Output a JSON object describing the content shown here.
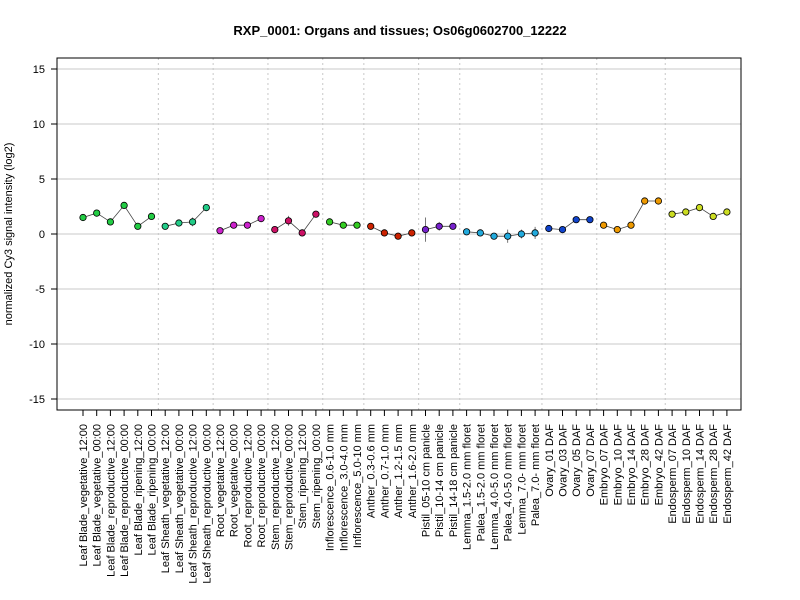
{
  "chart_data": {
    "type": "scatter",
    "title": "RXP_0001: Organs and tissues; Os06g0602700_12222",
    "ylabel": "normalized Cy3 signal intensity (log2)",
    "xlabel": "",
    "ylim": [
      -16,
      16
    ],
    "yticks": [
      -15,
      -10,
      -5,
      0,
      5,
      10,
      15
    ],
    "grid": true,
    "categories": [
      "Leaf Blade_vegetative_12:00",
      "Leaf Blade_vegetative_00:00",
      "Leaf Blade_reproductive_12:00",
      "Leaf Blade_reproductive_00:00",
      "Leaf Blade_ripening_12:00",
      "Leaf Blade_ripening_00:00",
      "Leaf Sheath_vegetative_12:00",
      "Leaf Sheath_vegetative_00:00",
      "Leaf Sheath_reproductive_12:00",
      "Leaf Sheath_reproductive_00:00",
      "Root_vegetative_12:00",
      "Root_vegetative_00:00",
      "Root_reproductive_12:00",
      "Root_reproductive_00:00",
      "Stem_reproductive_12:00",
      "Stem_reproductive_00:00",
      "Stem_ripening_12:00",
      "Stem_ripening_00:00",
      "Inflorescence_0.6-1.0 mm",
      "Inflorescence_3.0-4.0 mm",
      "Inflorescence_5.0-10 mm",
      "Anther_0.3-0.6 mm",
      "Anther_0.7-1.0 mm",
      "Anther_1.2-1.5 mm",
      "Anther_1.6-2.0 mm",
      "Pistil_05-10 cm panicle",
      "Pistil_10-14 cm panicle",
      "Pistil_14-18 cm panicle",
      "Lemma_1.5-2.0 mm floret",
      "Palea_1.5-2.0 mm floret",
      "Lemma_4.0-5.0 mm floret",
      "Palea_4.0-5.0 mm floret",
      "Lemma_7.0- mm floret",
      "Palea_7.0- mm floret",
      "Ovary_01 DAF",
      "Ovary_03 DAF",
      "Ovary_05 DAF",
      "Ovary_07 DAF",
      "Embryo_07 DAF",
      "Embryo_10 DAF",
      "Embryo_14 DAF",
      "Embryo_28 DAF",
      "Embryo_42 DAF",
      "Endosperm_07 DAF",
      "Endosperm_10 DAF",
      "Endosperm_14 DAF",
      "Endosperm_28 DAF",
      "Endosperm_42 DAF"
    ],
    "values": [
      1.5,
      1.9,
      1.1,
      2.6,
      0.7,
      1.6,
      0.7,
      1.0,
      1.1,
      2.4,
      0.3,
      0.8,
      0.8,
      1.4,
      0.4,
      1.2,
      0.1,
      1.8,
      1.1,
      0.8,
      0.8,
      0.7,
      0.1,
      -0.2,
      0.1,
      0.4,
      0.7,
      0.7,
      0.2,
      0.1,
      -0.2,
      -0.2,
      0.0,
      0.1,
      0.5,
      0.4,
      1.3,
      1.3,
      0.8,
      0.4,
      0.8,
      3.0,
      3.0,
      1.8,
      2.0,
      2.4,
      1.6,
      2.0
    ],
    "errors": [
      0.15,
      0.1,
      0.2,
      0.15,
      0.1,
      0.15,
      0.1,
      0.15,
      0.4,
      0.15,
      0.05,
      0.1,
      0.1,
      0.15,
      0.2,
      0.45,
      0.05,
      0.3,
      0.1,
      0.1,
      0.1,
      0.3,
      0.1,
      0.3,
      0.3,
      1.1,
      0.4,
      0.2,
      0.1,
      0.1,
      0.1,
      0.6,
      0.4,
      0.55,
      0.15,
      0.1,
      0.1,
      0.2,
      0.1,
      0.1,
      0.1,
      0.1,
      0.15,
      0.1,
      0.1,
      0.15,
      0.1,
      0.1
    ],
    "colors": [
      "#22cc44",
      "#22cc44",
      "#22cc44",
      "#22cc44",
      "#22cc44",
      "#22cc44",
      "#22cc88",
      "#22cc88",
      "#22cc88",
      "#22cc88",
      "#cc22cc",
      "#cc22cc",
      "#cc22cc",
      "#cc22cc",
      "#cc1166",
      "#cc1166",
      "#cc1166",
      "#cc1166",
      "#33cc22",
      "#33cc22",
      "#33cc22",
      "#cc2200",
      "#cc2200",
      "#cc2200",
      "#cc2200",
      "#7722cc",
      "#7722cc",
      "#7722cc",
      "#22aadd",
      "#22aadd",
      "#22aadd",
      "#22aadd",
      "#22aadd",
      "#22aadd",
      "#1144cc",
      "#1144cc",
      "#1144cc",
      "#1144cc",
      "#ee9900",
      "#ee9900",
      "#ee9900",
      "#ee9900",
      "#ee9900",
      "#ccdd22",
      "#ccdd22",
      "#ccdd22",
      "#ccdd22",
      "#ccdd22"
    ],
    "group_ends": [
      5,
      9,
      13,
      17,
      20,
      24,
      27,
      33,
      37,
      42
    ],
    "lines": [
      [
        0,
        5
      ],
      [
        6,
        9
      ],
      [
        10,
        13
      ],
      [
        14,
        17
      ],
      [
        18,
        20
      ],
      [
        21,
        24
      ],
      [
        25,
        27
      ],
      [
        28,
        33
      ],
      [
        34,
        37
      ],
      [
        38,
        42
      ],
      [
        43,
        47
      ]
    ]
  }
}
